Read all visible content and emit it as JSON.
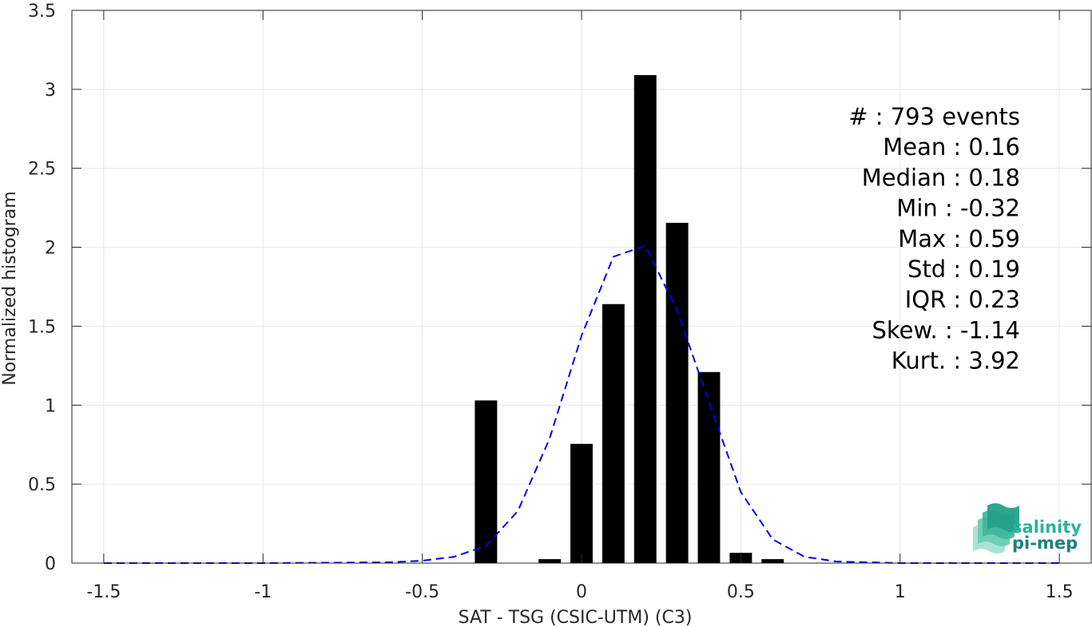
{
  "chart_data": {
    "type": "bar",
    "xlabel": "SAT - TSG (CSIC-UTM) (C3)",
    "ylabel": "Normalized histogram",
    "xlim": [
      -1.6,
      1.6
    ],
    "ylim": [
      0,
      3.5
    ],
    "grid": true,
    "x_ticks": [
      {
        "value": -1.5,
        "label": "-1.5"
      },
      {
        "value": -1.0,
        "label": "-1"
      },
      {
        "value": -0.5,
        "label": "-0.5"
      },
      {
        "value": 0.0,
        "label": "0"
      },
      {
        "value": 0.5,
        "label": "0.5"
      },
      {
        "value": 1.0,
        "label": "1"
      },
      {
        "value": 1.5,
        "label": "1.5"
      }
    ],
    "y_ticks": [
      {
        "value": 0,
        "label": "0"
      },
      {
        "value": 0.5,
        "label": "0.5"
      },
      {
        "value": 1,
        "label": "1"
      },
      {
        "value": 1.5,
        "label": "1.5"
      },
      {
        "value": 2,
        "label": "2"
      },
      {
        "value": 2.5,
        "label": "2.5"
      },
      {
        "value": 3,
        "label": "3"
      },
      {
        "value": 3.5,
        "label": "3.5"
      }
    ],
    "bar_width": 0.07,
    "bars": [
      {
        "x": -0.3,
        "y": 1.03
      },
      {
        "x": -0.1,
        "y": 0.025
      },
      {
        "x": 0.0,
        "y": 0.755
      },
      {
        "x": 0.1,
        "y": 1.64
      },
      {
        "x": 0.2,
        "y": 3.09
      },
      {
        "x": 0.3,
        "y": 2.155
      },
      {
        "x": 0.4,
        "y": 1.21
      },
      {
        "x": 0.5,
        "y": 0.065
      },
      {
        "x": 0.6,
        "y": 0.025
      }
    ],
    "bar_color": "#000000",
    "fit_curve": {
      "style": "dashed",
      "color": "#0000e6",
      "points": [
        [
          -1.5,
          0.0
        ],
        [
          -1.0,
          0.0
        ],
        [
          -0.6,
          0.005
        ],
        [
          -0.5,
          0.015
        ],
        [
          -0.4,
          0.04
        ],
        [
          -0.3,
          0.11
        ],
        [
          -0.2,
          0.33
        ],
        [
          -0.1,
          0.79
        ],
        [
          0.0,
          1.44
        ],
        [
          0.1,
          1.94
        ],
        [
          0.2,
          2.01
        ],
        [
          0.3,
          1.6
        ],
        [
          0.4,
          1.02
        ],
        [
          0.5,
          0.45
        ],
        [
          0.6,
          0.15
        ],
        [
          0.7,
          0.04
        ],
        [
          0.8,
          0.01
        ],
        [
          1.0,
          0.0
        ],
        [
          1.5,
          0.0
        ]
      ]
    },
    "stats": [
      {
        "label": "#  ",
        "value": ": 793 events"
      },
      {
        "label": "Mean ",
        "value": ": 0.16"
      },
      {
        "label": "Median ",
        "value": ": 0.18"
      },
      {
        "label": "Min ",
        "value": ": -0.32"
      },
      {
        "label": "Max ",
        "value": ": 0.59"
      },
      {
        "label": "Std ",
        "value": ": 0.19"
      },
      {
        "label": "IQR ",
        "value": ": 0.23"
      },
      {
        "label": "Skew. ",
        "value": ": -1.14"
      },
      {
        "label": "Kurt. ",
        "value": ": 3.92"
      }
    ]
  },
  "logo": {
    "line1": "salinity",
    "line2": "pi-mep",
    "color1": "#2bb39a",
    "color2": "#1f7f78"
  }
}
